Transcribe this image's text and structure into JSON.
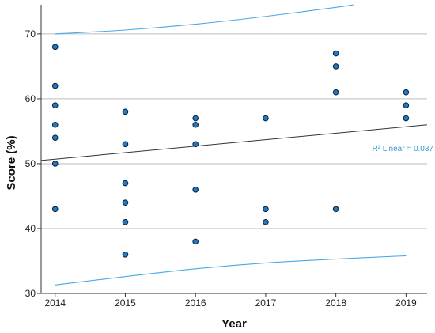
{
  "chart_data": {
    "type": "scatter",
    "xlabel": "Year",
    "ylabel": "Score (%)",
    "x_ticks": [
      "2014",
      "2015",
      "2016",
      "2017",
      "2018",
      "2019"
    ],
    "y_ticks": [
      "30",
      "40",
      "50",
      "60",
      "70"
    ],
    "xlim": [
      2013.8,
      2019.3
    ],
    "ylim": [
      30,
      74.5
    ],
    "grid": "horizontal",
    "points": [
      {
        "x": 2014,
        "y": 68
      },
      {
        "x": 2014,
        "y": 62
      },
      {
        "x": 2014,
        "y": 59
      },
      {
        "x": 2014,
        "y": 56
      },
      {
        "x": 2014,
        "y": 54
      },
      {
        "x": 2014,
        "y": 50
      },
      {
        "x": 2014,
        "y": 43
      },
      {
        "x": 2015,
        "y": 58
      },
      {
        "x": 2015,
        "y": 53
      },
      {
        "x": 2015,
        "y": 47
      },
      {
        "x": 2015,
        "y": 44
      },
      {
        "x": 2015,
        "y": 41
      },
      {
        "x": 2015,
        "y": 36
      },
      {
        "x": 2016,
        "y": 57
      },
      {
        "x": 2016,
        "y": 56
      },
      {
        "x": 2016,
        "y": 53
      },
      {
        "x": 2016,
        "y": 46
      },
      {
        "x": 2016,
        "y": 38
      },
      {
        "x": 2017,
        "y": 57
      },
      {
        "x": 2017,
        "y": 43
      },
      {
        "x": 2017,
        "y": 41
      },
      {
        "x": 2018,
        "y": 67
      },
      {
        "x": 2018,
        "y": 65
      },
      {
        "x": 2018,
        "y": 61
      },
      {
        "x": 2018,
        "y": 43
      },
      {
        "x": 2019,
        "y": 61
      },
      {
        "x": 2019,
        "y": 59
      },
      {
        "x": 2019,
        "y": 57
      }
    ],
    "fit_line": {
      "x": [
        2013.8,
        2019.3
      ],
      "y": [
        50.5,
        56.0
      ]
    },
    "upper_ci": {
      "x": [
        2014,
        2015,
        2016,
        2017,
        2018,
        2018.25
      ],
      "y": [
        70.0,
        70.6,
        71.5,
        72.7,
        74.1,
        74.5
      ]
    },
    "lower_ci": {
      "x": [
        2014,
        2015,
        2016,
        2017,
        2018,
        2019
      ],
      "y": [
        31.3,
        32.6,
        33.8,
        34.7,
        35.3,
        35.8
      ]
    },
    "annotation": "R² Linear = 0.037",
    "colors": {
      "marker_fill": "#1f78c1",
      "marker_edge": "#0b1e33",
      "fit_line": "#333333",
      "ci_lines": "#4aa8e8",
      "grid": "#bdbdbd",
      "annotation": "#3a9ad9"
    }
  }
}
